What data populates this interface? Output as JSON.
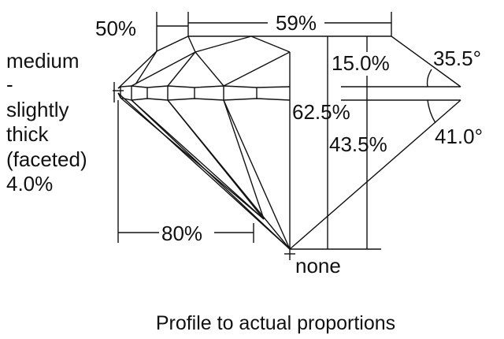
{
  "diagram": {
    "crown_angle_label": "35.5°",
    "pavilion_angle_label": "41.0°",
    "table_label": "59%",
    "star_length_label": "50%",
    "crown_height_label": "15.0%",
    "total_depth_label": "62.5%",
    "pavilion_depth_label": "43.5%",
    "lower_half_label": "80%",
    "culet_label": "none",
    "girdle_lines": [
      "medium",
      "-",
      "slightly",
      "thick",
      "(faceted)",
      "4.0%"
    ],
    "caption": "Profile to actual proportions"
  }
}
